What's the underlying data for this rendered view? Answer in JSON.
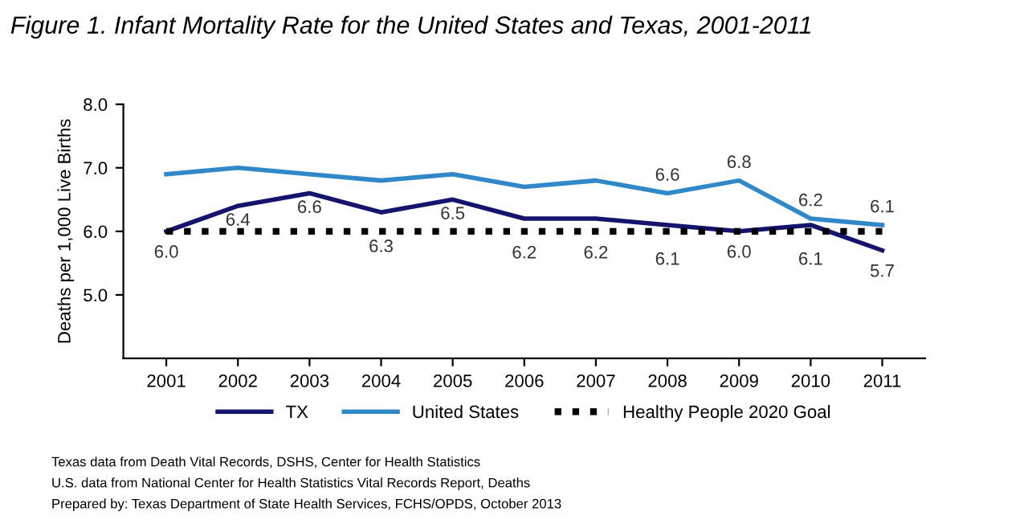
{
  "chart_data": {
    "type": "line",
    "title": "Figure 1. Infant Mortality Rate for the United States and Texas, 2001-2011",
    "ylabel": "Deaths per 1,000 Live Births",
    "categories": [
      "2001",
      "2002",
      "2003",
      "2004",
      "2005",
      "2006",
      "2007",
      "2008",
      "2009",
      "2010",
      "2011"
    ],
    "series": [
      {
        "name": "TX",
        "color": "#14146e",
        "values": [
          6.0,
          6.4,
          6.6,
          6.3,
          6.5,
          6.2,
          6.2,
          6.1,
          6.0,
          6.1,
          5.7
        ],
        "value_labels": [
          "6.0",
          "6.4",
          "6.6",
          "6.3",
          "6.5",
          "6.2",
          "6.2",
          "6.1",
          "6.0",
          "6.1",
          "5.7"
        ],
        "line_style": "solid"
      },
      {
        "name": "United States",
        "color": "#2f88c8",
        "values": [
          6.9,
          7.0,
          6.9,
          6.8,
          6.9,
          6.7,
          6.8,
          6.6,
          6.8,
          6.2,
          6.1
        ],
        "value_labels": [
          null,
          null,
          null,
          null,
          null,
          null,
          null,
          "6.6",
          "6.8",
          "6.2",
          "6.1"
        ],
        "line_style": "solid"
      },
      {
        "name": "Healthy People 2020 Goal",
        "color": "#000000",
        "values": [
          6.0,
          6.0,
          6.0,
          6.0,
          6.0,
          6.0,
          6.0,
          6.0,
          6.0,
          6.0,
          6.0
        ],
        "line_style": "dotted"
      }
    ],
    "ylim": [
      4.0,
      8.0
    ],
    "yticks": [
      {
        "value": 5.0,
        "label": "5.0"
      },
      {
        "value": 6.0,
        "label": "6.0"
      },
      {
        "value": 7.0,
        "label": "7.0"
      },
      {
        "value": 8.0,
        "label": "8.0"
      }
    ],
    "grid": false,
    "legend": "bottom",
    "marker": "none",
    "annotations": [
      "Texas data from Death Vital Records, DSHS, Center for Health Statistics",
      "U.S. data from National Center for Health Statistics Vital Records Report, Deaths",
      "Prepared by: Texas Department of State Health Services, FCHS/OPDS, October 2013"
    ]
  }
}
